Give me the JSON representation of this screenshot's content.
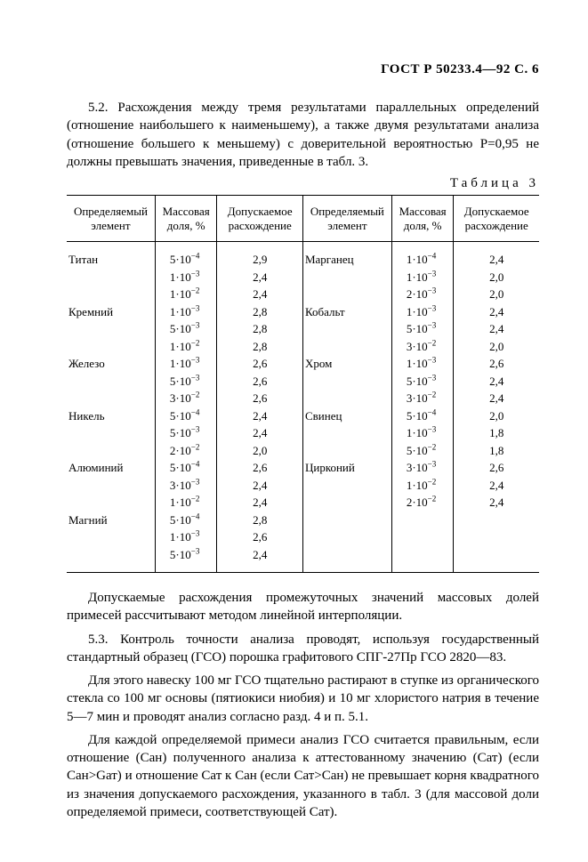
{
  "header": "ГОСТ Р 50233.4—92 С. 6",
  "p1": "5.2. Расхождения между тремя результатами параллельных определений (отношение наибольшего к наименьшему), а также двумя результатами анализа (отношение большего к меньшему) с доверительной вероятностью P=0,95 не должны превышать значения, приведенные в табл. 3.",
  "table_caption": "Таблица 3",
  "thead": {
    "c1": "Определяемый элемент",
    "c2": "Массовая доля, %",
    "c3": "Допускаемое расхождение",
    "c4": "Определяемый элемент",
    "c5": "Массовая доля, %",
    "c6": "Допускаемое расхождение"
  },
  "left_rows": [
    {
      "el": "Титан",
      "mass": "5·10⁻⁴",
      "rac": "2,9"
    },
    {
      "el": "",
      "mass": "1·10⁻³",
      "rac": "2,4"
    },
    {
      "el": "",
      "mass": "1·10⁻²",
      "rac": "2,4"
    },
    {
      "el": "Кремний",
      "mass": "1·10⁻³",
      "rac": "2,8"
    },
    {
      "el": "",
      "mass": "5·10⁻³",
      "rac": "2,8"
    },
    {
      "el": "",
      "mass": "1·10⁻²",
      "rac": "2,8"
    },
    {
      "el": "Железо",
      "mass": "1·10⁻³",
      "rac": "2,6"
    },
    {
      "el": "",
      "mass": "5·10⁻³",
      "rac": "2,6"
    },
    {
      "el": "",
      "mass": "3·10⁻²",
      "rac": "2,6"
    },
    {
      "el": "Никель",
      "mass": "5·10⁻⁴",
      "rac": "2,4"
    },
    {
      "el": "",
      "mass": "5·10⁻³",
      "rac": "2,4"
    },
    {
      "el": "",
      "mass": "2·10⁻²",
      "rac": "2,0"
    },
    {
      "el": "Алюминий",
      "mass": "5·10⁻⁴",
      "rac": "2,6"
    },
    {
      "el": "",
      "mass": "3·10⁻³",
      "rac": "2,4"
    },
    {
      "el": "",
      "mass": "1·10⁻²",
      "rac": "2,4"
    },
    {
      "el": "Магний",
      "mass": "5·10⁻⁴",
      "rac": "2,8"
    },
    {
      "el": "",
      "mass": "1·10⁻³",
      "rac": "2,6"
    },
    {
      "el": "",
      "mass": "5·10⁻³",
      "rac": "2,4"
    }
  ],
  "right_rows": [
    {
      "el": "Марганец",
      "mass": "1·10⁻⁴",
      "rac": "2,4"
    },
    {
      "el": "",
      "mass": "1·10⁻³",
      "rac": "2,0"
    },
    {
      "el": "",
      "mass": "2·10⁻³",
      "rac": "2,0"
    },
    {
      "el": "Кобальт",
      "mass": "1·10⁻³",
      "rac": "2,4"
    },
    {
      "el": "",
      "mass": "5·10⁻³",
      "rac": "2,4"
    },
    {
      "el": "",
      "mass": "3·10⁻²",
      "rac": "2,0"
    },
    {
      "el": "Хром",
      "mass": "1·10⁻³",
      "rac": "2,6"
    },
    {
      "el": "",
      "mass": "5·10⁻³",
      "rac": "2,4"
    },
    {
      "el": "",
      "mass": "3·10⁻²",
      "rac": "2,4"
    },
    {
      "el": "Свинец",
      "mass": "5·10⁻⁴",
      "rac": "2,0"
    },
    {
      "el": "",
      "mass": "1·10⁻³",
      "rac": "1,8"
    },
    {
      "el": "",
      "mass": "5·10⁻²",
      "rac": "1,8"
    },
    {
      "el": "Цирконий",
      "mass": "3·10⁻³",
      "rac": "2,6"
    },
    {
      "el": "",
      "mass": "1·10⁻²",
      "rac": "2,4"
    },
    {
      "el": "",
      "mass": "2·10⁻²",
      "rac": "2,4"
    },
    {
      "el": "",
      "mass": "",
      "rac": ""
    },
    {
      "el": "",
      "mass": "",
      "rac": ""
    },
    {
      "el": "",
      "mass": "",
      "rac": ""
    }
  ],
  "p2": "Допускаемые расхождения промежуточных значений массовых долей примесей рассчитывают методом линейной интерполяции.",
  "p3": "5.3. Контроль точности анализа проводят, используя государственный стандартный образец (ГСО) порошка графитового СПГ-27Пр ГСО 2820—83.",
  "p4": "Для этого навеску 100 мг ГСО тщательно растирают в ступке из органического стекла со 100 мг основы (пятиокиси ниобия) и 10 мг хлористого натрия в течение 5—7 мин и проводят анализ согласно разд. 4 и п. 5.1.",
  "p5": "Для каждой определяемой примеси анализ ГСО считается правильным, если отношение (Cан) полученного анализа к аттестованному значению (Cат) (если Cан>Gат) и отношение Cат к Cан (если Cат>Cан) не превышает корня квадратного из значения допускаемого расхождения, указанного в табл. 3 (для массовой доли определяемой примеси, соответствующей Cат)."
}
